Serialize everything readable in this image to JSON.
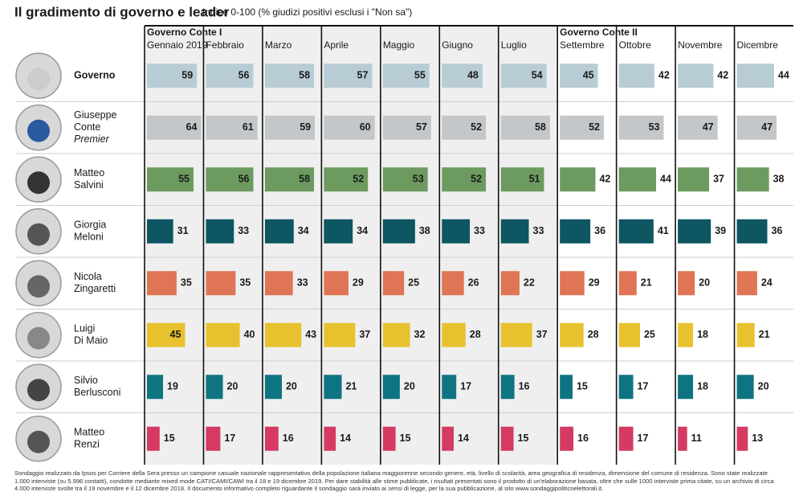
{
  "chart_data": {
    "type": "bar",
    "title": "Il gradimento di governo e leader",
    "subtitle": "Indice 0-100 (% giudizi positivi esclusi i \"Non sa\")",
    "groups": [
      {
        "name": "Governo Conte I",
        "categories": [
          "Gennaio 2019",
          "Febbraio",
          "Marzo",
          "Aprile",
          "Maggio",
          "Giugno",
          "Luglio"
        ]
      },
      {
        "name": "Governo Conte II",
        "categories": [
          "Settembre",
          "Ottobre",
          "Novembre",
          "Dicembre"
        ]
      }
    ],
    "series": [
      {
        "name": [
          "Governo"
        ],
        "color": "#b8ccd5",
        "values": [
          59,
          56,
          58,
          57,
          55,
          48,
          54,
          45,
          42,
          42,
          44
        ]
      },
      {
        "name": [
          "Giuseppe",
          "Conte"
        ],
        "note": "Premier",
        "color": "#c3c7c9",
        "values": [
          64,
          61,
          59,
          60,
          57,
          52,
          58,
          52,
          53,
          47,
          47
        ]
      },
      {
        "name": [
          "Matteo",
          "Salvini"
        ],
        "color": "#6d9a5f",
        "values": [
          55,
          56,
          58,
          52,
          53,
          52,
          51,
          42,
          44,
          37,
          38
        ]
      },
      {
        "name": [
          "Giorgia",
          "Meloni"
        ],
        "color": "#0d5662",
        "values": [
          31,
          33,
          34,
          34,
          38,
          33,
          33,
          36,
          41,
          39,
          36
        ]
      },
      {
        "name": [
          "Nicola",
          "Zingaretti"
        ],
        "color": "#df7555",
        "values": [
          35,
          35,
          33,
          29,
          25,
          26,
          22,
          29,
          21,
          20,
          24
        ]
      },
      {
        "name": [
          "Luigi",
          "Di Maio"
        ],
        "color": "#e7c22e",
        "values": [
          45,
          40,
          43,
          37,
          32,
          28,
          37,
          28,
          25,
          18,
          21
        ]
      },
      {
        "name": [
          "Silvio",
          "Berlusconi"
        ],
        "color": "#0f7482",
        "values": [
          19,
          20,
          20,
          21,
          20,
          17,
          16,
          15,
          17,
          18,
          20
        ]
      },
      {
        "name": [
          "Matteo",
          "Renzi"
        ],
        "color": "#d53a63",
        "values": [
          15,
          17,
          16,
          14,
          15,
          14,
          15,
          16,
          17,
          11,
          13
        ]
      }
    ],
    "footnote": "Sondaggio realizzato da Ipsos per Corriere della Sera presso un campione casuale nazionale rappresentativo della popolazione italiana maggiorenne secondo genere, età, livello di scolarità, area geografica di residenza, dimensione del comune di residenza. Sono state realizzate 1.000 interviste (su 5.996 contatti), condotte mediante mixed mode CATI/CAMI/CAWI tra il 18 e 19 dicembre 2019. Per dare stabilità alle stime pubblicate, i risultati presentati sono il prodotto di un'elaborazione basata, oltre che sulle 1000 interviste prima citate, su un archivio di circa 4.000 interviste svolte tra il 19 novembre e il 12 dicembre 2018. Il documento informativo completo riguardante il sondaggio sarà inviato ai sensi di legge, per la sua pubblicazione, al sito www.sondaggipoliticoelettorali.it."
  }
}
